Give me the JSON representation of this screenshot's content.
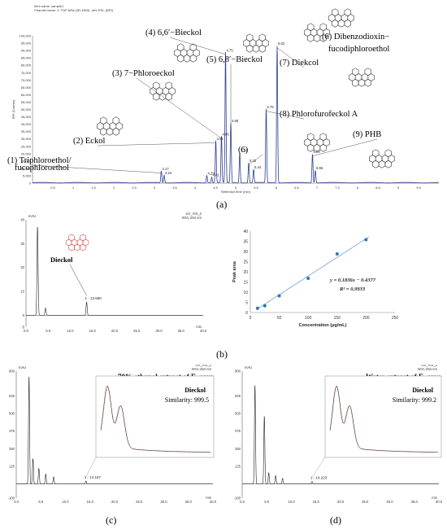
{
  "figure": {
    "labels": {
      "a": "(a)",
      "b": "(b)",
      "c": "(c)",
      "d": "(d)"
    }
  },
  "colors": {
    "trace_blue": "#2f3f8f",
    "trace_black": "#222222",
    "inset_red": "#d64545",
    "linear_point": "#2e75b6",
    "linear_fit": "#7aa6d6"
  },
  "icons": [
    "polyphenol-structure-icon"
  ],
  "chart_data": [
    {
      "id": "a",
      "type": "line",
      "header": [
        "Item name: sample1",
        "Channel name: 2: TOF MSe (50-1500) -4eV ESI- (BPI)"
      ],
      "ylabel": "BPI (Counts)",
      "xlabel": "Retention time (min)",
      "xlim": [
        0,
        10
      ],
      "ylim": [
        0,
        100000
      ],
      "xticks": [
        "0.5",
        "1",
        "1.5",
        "2",
        "2.5",
        "3",
        "3.5",
        "4",
        "4.5",
        "5",
        "5.5",
        "6",
        "6.5",
        "7",
        "7.5",
        "8",
        "8.5",
        "9",
        "9.5"
      ],
      "yticks": [
        "0",
        "5,000",
        "10,000",
        "15,000",
        "20,000",
        "25,000",
        "30,000",
        "35,000",
        "40,000",
        "45,000",
        "50,000",
        "55,000",
        "60,000",
        "65,000",
        "70,000",
        "75,000",
        "80,000",
        "85,000",
        "90,000",
        "95,000",
        "100,000"
      ],
      "peaks": [
        {
          "x": 3.17,
          "y": 8000,
          "label": "3.17"
        },
        {
          "x": 3.24,
          "y": 5200,
          "label": "3.24"
        },
        {
          "x": 4.29,
          "y": 5000,
          "label": "4.29"
        },
        {
          "x": 4.41,
          "y": 3800,
          "label": "4.41"
        },
        {
          "x": 4.51,
          "y": 28500,
          "label": "4.51"
        },
        {
          "x": 4.65,
          "y": 31500,
          "label": "4.65"
        },
        {
          "x": 4.75,
          "y": 88500,
          "label": "4.75"
        },
        {
          "x": 4.88,
          "y": 40500,
          "label": "4.88"
        },
        {
          "x": 5.1,
          "y": 20500,
          "label": "5.10"
        },
        {
          "x": 5.32,
          "y": 13500,
          "label": "5.32"
        },
        {
          "x": 5.44,
          "y": 9000,
          "label": "5.44"
        },
        {
          "x": 5.75,
          "y": 50000,
          "label": "5.75"
        },
        {
          "x": 6.02,
          "y": 93000,
          "label": "6.02"
        },
        {
          "x": 6.89,
          "y": 19500,
          "label": "6.89"
        },
        {
          "x": 6.96,
          "y": 8500,
          "label": "6.96"
        }
      ],
      "annotations": [
        {
          "text": "(1)  Triphloroethol/",
          "text2": "fucophloroethol",
          "peak": 0
        },
        {
          "text": "(2) Eckol",
          "peak": 4
        },
        {
          "text": "(3) 7−Phloroeckol",
          "peak": 5
        },
        {
          "text": "(4) 6,6′−Bieckol",
          "peak": 6
        },
        {
          "text": "(5) 6,8′−Bieckol",
          "peak": 7
        },
        {
          "text": "(6)",
          "peak": 9
        },
        {
          "text": "(7) Diekcol",
          "peak": 12
        },
        {
          "text": "(8) Phlorofurofeckol A",
          "peak": 11
        },
        {
          "text": "(6) Dibenzodioxin−",
          "text2": "fucodiphloroethol"
        },
        {
          "text": "(9) PHB",
          "peak": 13
        }
      ]
    },
    {
      "id": "b-chromatogram",
      "type": "line",
      "ylabel": "mAU",
      "xlabel": "min",
      "header": [
        "UV_VIS_2",
        "WVL:254 nm"
      ],
      "xlim": [
        0,
        40
      ],
      "ylim": [
        -5,
        40
      ],
      "xticks": [
        "0.0",
        "5.0",
        "10.0",
        "15.0",
        "20.0",
        "25.0",
        "30.0",
        "35.0",
        "40.0"
      ],
      "yticks": [
        "-5",
        "0",
        "10",
        "20",
        "30",
        "40"
      ],
      "peaks": [
        {
          "x": 2.6,
          "y": 37
        },
        {
          "x": 4.4,
          "y": 3
        },
        {
          "x": 13.68,
          "y": 5.5,
          "label": "1 - 13.680"
        }
      ],
      "annotation": "Dieckol"
    },
    {
      "id": "b-calibration",
      "type": "scatter",
      "xlabel": "Concentration (μg/mL)",
      "ylabel": "Peak area",
      "xlim": [
        0,
        250
      ],
      "ylim": [
        0,
        40
      ],
      "xticks": [
        "0",
        "50",
        "100",
        "150",
        "200",
        "250"
      ],
      "yticks": [
        "0",
        "5",
        "10",
        "15",
        "20",
        "25",
        "30",
        "35",
        "40"
      ],
      "x": [
        12.5,
        25,
        50,
        100,
        150,
        200
      ],
      "y": [
        2.1,
        3.3,
        8.2,
        16.8,
        28.8,
        35.8
      ],
      "fit_slope": 0.1836,
      "fit_intercept": -0.4377,
      "equation": "y = 0.1836x − 0.4377",
      "r2": "R² = 0.9933"
    },
    {
      "id": "c",
      "type": "line",
      "title": "70% ethanol extract of E. cava",
      "header": [
        "UV_VIS_2",
        "WVL:254 nm"
      ],
      "ylabel": "mAU",
      "xlabel": "min",
      "xlim": [
        0,
        40
      ],
      "ylim": [
        -100,
        800
      ],
      "xticks": [
        "0.0",
        "5.0",
        "10.0",
        "15.0",
        "20.0",
        "25.0",
        "30.0",
        "35.0",
        "40.0"
      ],
      "yticks": [
        "-100",
        "125",
        "250",
        "375",
        "500",
        "625",
        "800"
      ],
      "peaks": [
        {
          "x": 2.6,
          "y": 760
        },
        {
          "x": 3.4,
          "y": 180
        },
        {
          "x": 4.6,
          "y": 110
        },
        {
          "x": 6.0,
          "y": 70
        },
        {
          "x": 7.6,
          "y": 50
        },
        {
          "x": 14.17,
          "y": 20,
          "label": "1 - 14.167"
        }
      ],
      "inset_label": "Dieckol",
      "inset_similarity": "Similarity: 999.5"
    },
    {
      "id": "d",
      "type": "line",
      "title": "Water extract of E. cava",
      "header": [
        "UV_VIS_2",
        "WVL:254 nm"
      ],
      "ylabel": "mAU",
      "xlabel": "min",
      "xlim": [
        0,
        40
      ],
      "ylim": [
        -100,
        800
      ],
      "xticks": [
        "0.0",
        "5.0",
        "10.0",
        "15.0",
        "20.0",
        "25.0",
        "30.0",
        "35.0",
        "40.0"
      ],
      "yticks": [
        "-100",
        "125",
        "250",
        "375",
        "500",
        "625",
        "800"
      ],
      "peaks": [
        {
          "x": 2.6,
          "y": 700
        },
        {
          "x": 4.5,
          "y": 480
        },
        {
          "x": 5.4,
          "y": 80
        },
        {
          "x": 6.8,
          "y": 60
        },
        {
          "x": 8.2,
          "y": 40
        },
        {
          "x": 14.22,
          "y": 18,
          "label": "1 - 14.223"
        }
      ],
      "inset_label": "Dieckol",
      "inset_similarity": "Similarity: 999.2"
    }
  ]
}
